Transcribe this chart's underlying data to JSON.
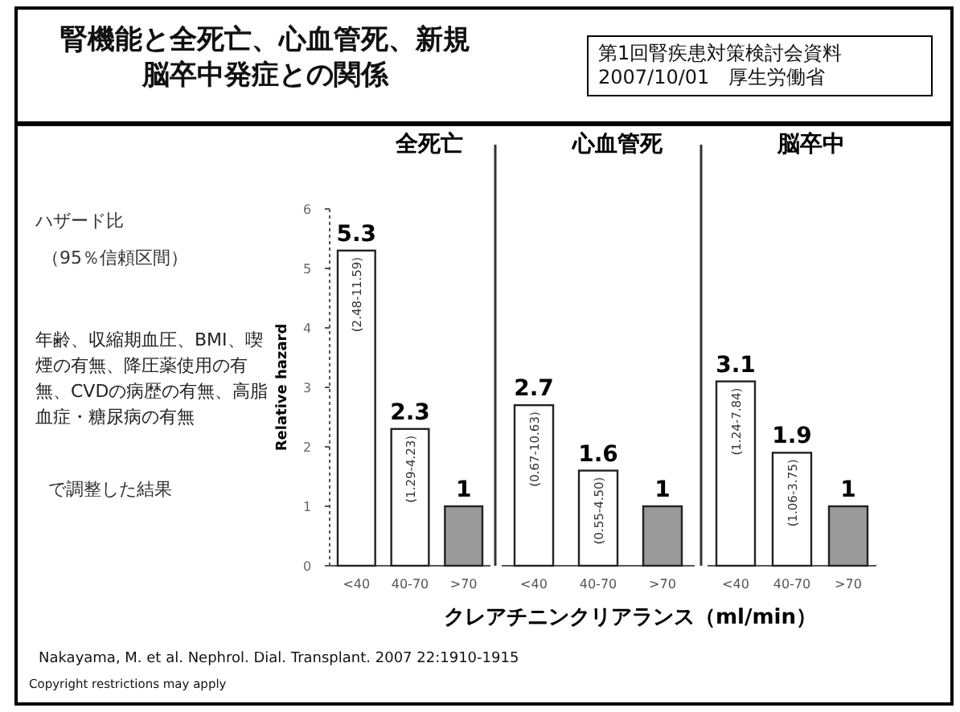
{
  "chart_data": [
    {
      "type": "bar",
      "title": "全死亡",
      "ylabel": "Relative hazard",
      "categories": [
        "<40",
        "40-70",
        ">70"
      ],
      "values": [
        5.3,
        2.3,
        1
      ],
      "colors": [
        "#ffffff",
        "#ffffff",
        "#9a9a9a"
      ],
      "ylim": [
        0,
        6
      ],
      "yticks": [
        0,
        1,
        2,
        3,
        4,
        5,
        6
      ],
      "data_labels": true,
      "annotations": [
        {
          "text": "(2.48-11.59)",
          "x": "<40",
          "y": 5.3
        },
        {
          "text": "(1.29-4.23)",
          "x": "40-70",
          "y": 2.3
        }
      ]
    },
    {
      "type": "bar",
      "title": "心血管死",
      "xlabel": "クレアチニンクリアランス（ml/min）",
      "categories": [
        "<40",
        "40-70",
        ">70"
      ],
      "values": [
        2.7,
        1.6,
        1
      ],
      "colors": [
        "#ffffff",
        "#ffffff",
        "#9a9a9a"
      ],
      "ylim": [
        0,
        6
      ],
      "tick_labels": "x",
      "data_labels": true,
      "annotations": [
        {
          "text": "(0.67-10.63)",
          "x": "<40",
          "y": 2.7
        },
        {
          "text": "(0.55-4.50)",
          "x": "40-70",
          "y": 1.6
        }
      ]
    },
    {
      "type": "bar",
      "title": "脳卒中",
      "categories": [
        "<40",
        "40-70",
        ">70"
      ],
      "values": [
        3.1,
        1.9,
        1
      ],
      "colors": [
        "#ffffff",
        "#ffffff",
        "#9a9a9a"
      ],
      "ylim": [
        0,
        6
      ],
      "tick_labels": "x",
      "data_labels": true,
      "annotations": [
        {
          "text": "(1.24-7.84)",
          "x": "<40",
          "y": 3.1
        },
        {
          "text": "(1.06-3.75)",
          "x": "40-70",
          "y": 1.9
        }
      ]
    },
    {
      "type": "other",
      "title": "腎機能と全死亡、心血管死、新規脳卒中発症との関係",
      "annotations": [
        "第1回腎疾患対策検討会資料\n2007/10/01　厚生労働省",
        "ハザード比",
        "（95％信頼区間）",
        "年齢、収縮期血圧、BMI、喫煙の有無、降圧薬使用の有無、CVDの病歴の有無、高脂血症・糖尿病の有無",
        "で調整した結果",
        "Nakayama, M. et al. Nephrol. Dial. Transplant. 2007 22:1910-1915",
        "Copyright restrictions may apply"
      ]
    }
  ]
}
